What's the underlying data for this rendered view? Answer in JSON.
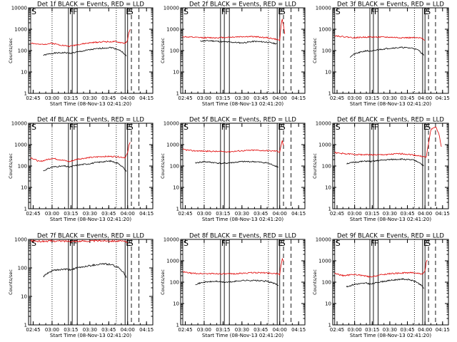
{
  "y_axis_label": "Counts/sec",
  "x_axis_label": "Start Time (08-Nov-13 02:41:20)",
  "x_tick_labels": [
    "02:45",
    "03:00",
    "03:15",
    "03:30",
    "03:45",
    "04:00",
    "04:15"
  ],
  "y_tick_labels": [
    "1",
    "10",
    "100",
    "1000",
    "10000"
  ],
  "event_markers": {
    "s": "S",
    "f": "F",
    "e": "E"
  },
  "colors": {
    "events": "#000000",
    "lld": "#e00000"
  },
  "chart_data": [
    {
      "type": "line",
      "title": "Det 1f BLACK = Events, RED = LLD",
      "yscale": "log",
      "ylim": [
        1,
        10000
      ],
      "xlim": [
        "02:41:20",
        "04:20:00"
      ],
      "series": [
        {
          "color": "black",
          "x": [
            "02:53",
            "03:00",
            "03:10",
            "03:14",
            "03:20",
            "03:30",
            "03:40",
            "03:47",
            "03:53",
            "03:57",
            "03:59"
          ],
          "values": [
            60,
            75,
            80,
            75,
            85,
            110,
            130,
            140,
            110,
            75,
            55
          ]
        },
        {
          "color": "red",
          "x": [
            "02:43",
            "02:50",
            "03:00",
            "03:10",
            "03:14",
            "03:20",
            "03:30",
            "03:40",
            "03:50",
            "03:58",
            "04:00",
            "04:01",
            "04:02"
          ],
          "values": [
            230,
            190,
            220,
            170,
            160,
            190,
            230,
            260,
            260,
            220,
            300,
            700,
            1000
          ]
        }
      ]
    },
    {
      "type": "line",
      "title": "Det 2f BLACK = Events, RED = LLD",
      "yscale": "log",
      "ylim": [
        1,
        10000
      ],
      "xlim": [
        "02:41:20",
        "04:20:00"
      ],
      "series": [
        {
          "color": "black",
          "x": [
            "02:57",
            "03:05",
            "03:14",
            "03:20",
            "03:30",
            "03:40",
            "03:50",
            "03:55",
            "03:58"
          ],
          "values": [
            280,
            290,
            260,
            250,
            230,
            270,
            250,
            220,
            210
          ]
        },
        {
          "color": "red",
          "x": [
            "02:43",
            "02:50",
            "03:00",
            "03:10",
            "03:20",
            "03:30",
            "03:40",
            "03:50",
            "03:56",
            "04:00",
            "04:01",
            "04:02",
            "04:03",
            "04:04"
          ],
          "values": [
            450,
            420,
            400,
            400,
            420,
            450,
            450,
            400,
            350,
            300,
            1500,
            3000,
            1500,
            600
          ]
        }
      ]
    },
    {
      "type": "line",
      "title": "Det 3f BLACK = Events, RED = LLD",
      "yscale": "log",
      "ylim": [
        1,
        10000
      ],
      "xlim": [
        "02:41:20",
        "04:20:00"
      ],
      "series": [
        {
          "color": "black",
          "x": [
            "02:56",
            "03:00",
            "03:10",
            "03:14",
            "03:20",
            "03:30",
            "03:40",
            "03:50",
            "03:55",
            "03:59"
          ],
          "values": [
            50,
            70,
            100,
            90,
            110,
            130,
            140,
            130,
            100,
            60
          ]
        },
        {
          "color": "red",
          "x": [
            "02:43",
            "02:50",
            "03:00",
            "03:10",
            "03:20",
            "03:30",
            "03:40",
            "03:50",
            "03:58",
            "04:00"
          ],
          "values": [
            500,
            450,
            400,
            430,
            430,
            420,
            400,
            400,
            380,
            300
          ]
        }
      ]
    },
    {
      "type": "line",
      "title": "Det 4f BLACK = Events, RED = LLD",
      "yscale": "log",
      "ylim": [
        1,
        10000
      ],
      "xlim": [
        "02:41:20",
        "04:20:00"
      ],
      "series": [
        {
          "color": "black",
          "x": [
            "02:53",
            "03:00",
            "03:10",
            "03:14",
            "03:20",
            "03:30",
            "03:40",
            "03:47",
            "03:53",
            "03:57",
            "03:59"
          ],
          "values": [
            60,
            90,
            100,
            90,
            110,
            130,
            160,
            170,
            130,
            80,
            55
          ]
        },
        {
          "color": "red",
          "x": [
            "02:43",
            "02:50",
            "03:00",
            "03:10",
            "03:14",
            "03:20",
            "03:30",
            "03:40",
            "03:50",
            "03:58",
            "04:00",
            "04:01",
            "04:02"
          ],
          "values": [
            250,
            160,
            230,
            180,
            160,
            210,
            250,
            280,
            280,
            250,
            400,
            900,
            1300
          ]
        }
      ]
    },
    {
      "type": "line",
      "title": "Det 5f BLACK = Events, RED = LLD",
      "yscale": "log",
      "ylim": [
        1,
        10000
      ],
      "xlim": [
        "02:41:20",
        "04:20:00"
      ],
      "series": [
        {
          "color": "black",
          "x": [
            "02:53",
            "03:00",
            "03:10",
            "03:14",
            "03:20",
            "03:30",
            "03:40",
            "03:50",
            "03:55",
            "03:59"
          ],
          "values": [
            140,
            160,
            140,
            130,
            140,
            160,
            160,
            140,
            110,
            90
          ]
        },
        {
          "color": "red",
          "x": [
            "02:43",
            "02:50",
            "03:00",
            "03:10",
            "03:20",
            "03:30",
            "03:40",
            "03:50",
            "03:58",
            "04:00",
            "04:01",
            "04:02",
            "04:03"
          ],
          "values": [
            600,
            520,
            500,
            480,
            470,
            520,
            550,
            520,
            500,
            450,
            900,
            1500,
            900
          ]
        }
      ]
    },
    {
      "type": "line",
      "title": "Det 6f BLACK = Events, RED = LLD",
      "yscale": "log",
      "ylim": [
        1,
        10000
      ],
      "xlim": [
        "02:41:20",
        "04:20:00"
      ],
      "series": [
        {
          "color": "black",
          "x": [
            "02:53",
            "03:00",
            "03:10",
            "03:14",
            "03:20",
            "03:30",
            "03:40",
            "03:50",
            "03:55",
            "03:59"
          ],
          "values": [
            130,
            150,
            170,
            160,
            180,
            200,
            210,
            190,
            150,
            100
          ]
        },
        {
          "color": "red",
          "x": [
            "02:43",
            "02:50",
            "03:00",
            "03:10",
            "03:20",
            "03:30",
            "03:40",
            "03:50",
            "03:58",
            "04:01",
            "04:05",
            "04:09",
            "04:12",
            "04:14"
          ],
          "values": [
            420,
            380,
            350,
            340,
            330,
            350,
            380,
            330,
            280,
            250,
            5000,
            7000,
            3000,
            800
          ]
        }
      ]
    },
    {
      "type": "line",
      "title": "Det 7f BLACK = Events, RED = LLD",
      "yscale": "log",
      "ylim": [
        1,
        1000
      ],
      "xlim": [
        "02:41:20",
        "04:20:00"
      ],
      "series": [
        {
          "color": "black",
          "x": [
            "02:53",
            "03:00",
            "03:10",
            "03:14",
            "03:20",
            "03:30",
            "03:40",
            "03:47",
            "03:53",
            "03:57",
            "03:59"
          ],
          "values": [
            50,
            80,
            90,
            85,
            100,
            120,
            140,
            130,
            100,
            70,
            45
          ]
        },
        {
          "color": "red",
          "x": [
            "02:43",
            "02:50",
            "03:00",
            "03:10",
            "03:20",
            "03:30",
            "03:40",
            "03:50",
            "03:58",
            "04:00"
          ],
          "values": [
            900,
            850,
            880,
            870,
            860,
            880,
            900,
            880,
            850,
            800
          ]
        }
      ]
    },
    {
      "type": "line",
      "title": "Det 8f BLACK = Events, RED = LLD",
      "yscale": "log",
      "ylim": [
        1,
        10000
      ],
      "xlim": [
        "02:41:20",
        "04:20:00"
      ],
      "series": [
        {
          "color": "black",
          "x": [
            "02:53",
            "03:00",
            "03:10",
            "03:14",
            "03:20",
            "03:30",
            "03:40",
            "03:50",
            "03:55",
            "03:59"
          ],
          "values": [
            80,
            100,
            110,
            100,
            100,
            120,
            120,
            110,
            90,
            70
          ]
        },
        {
          "color": "red",
          "x": [
            "02:43",
            "02:50",
            "03:00",
            "03:10",
            "03:20",
            "03:30",
            "03:40",
            "03:50",
            "03:58",
            "04:00",
            "04:01",
            "04:02",
            "04:03"
          ],
          "values": [
            300,
            260,
            250,
            250,
            240,
            260,
            280,
            270,
            250,
            220,
            600,
            1300,
            900
          ]
        }
      ]
    },
    {
      "type": "line",
      "title": "Det 9f BLACK = Events, RED = LLD",
      "yscale": "log",
      "ylim": [
        1,
        10000
      ],
      "xlim": [
        "02:41:20",
        "04:20:00"
      ],
      "series": [
        {
          "color": "black",
          "x": [
            "02:53",
            "03:00",
            "03:10",
            "03:14",
            "03:20",
            "03:30",
            "03:40",
            "03:47",
            "03:53",
            "03:57",
            "03:59"
          ],
          "values": [
            60,
            80,
            90,
            80,
            100,
            120,
            140,
            130,
            100,
            70,
            50
          ]
        },
        {
          "color": "red",
          "x": [
            "02:43",
            "02:50",
            "03:00",
            "03:10",
            "03:14",
            "03:20",
            "03:30",
            "03:40",
            "03:50",
            "03:58",
            "04:00",
            "04:01",
            "04:02"
          ],
          "values": [
            260,
            200,
            230,
            190,
            170,
            210,
            250,
            270,
            280,
            240,
            350,
            800,
            1100
          ]
        }
      ]
    }
  ]
}
